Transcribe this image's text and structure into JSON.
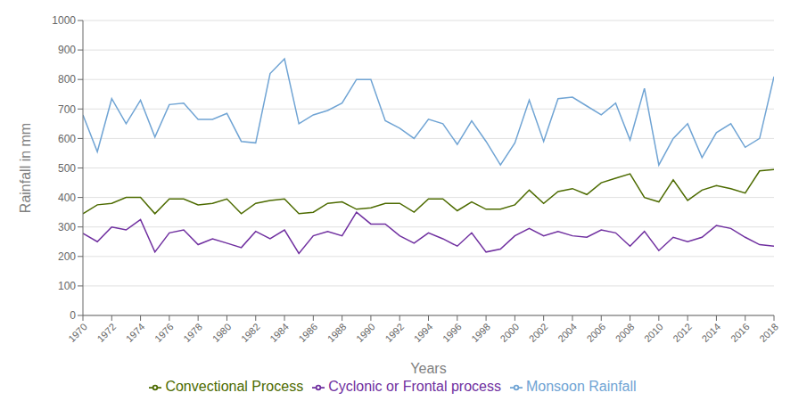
{
  "chart_data": {
    "type": "line",
    "xlabel": "Years",
    "ylabel": "Rainfall in mm",
    "x": [
      1970,
      1971,
      1972,
      1973,
      1974,
      1975,
      1976,
      1977,
      1978,
      1979,
      1980,
      1981,
      1982,
      1983,
      1984,
      1985,
      1986,
      1987,
      1988,
      1989,
      1990,
      1991,
      1992,
      1993,
      1994,
      1995,
      1996,
      1997,
      1998,
      1999,
      2000,
      2001,
      2002,
      2003,
      2004,
      2005,
      2006,
      2007,
      2008,
      2009,
      2010,
      2011,
      2012,
      2013,
      2014,
      2015,
      2016,
      2017,
      2018
    ],
    "series": [
      {
        "name": "Monsoon Rainfall",
        "color": "#70a4d4",
        "values": [
          680,
          555,
          735,
          650,
          730,
          605,
          715,
          720,
          665,
          665,
          685,
          590,
          585,
          820,
          870,
          650,
          680,
          695,
          720,
          800,
          800,
          660,
          635,
          600,
          665,
          650,
          580,
          660,
          590,
          510,
          585,
          730,
          590,
          735,
          740,
          710,
          680,
          720,
          595,
          770,
          510,
          600,
          650,
          535,
          620,
          650,
          570,
          600,
          810
        ]
      },
      {
        "name": "Cyclonic or Frontal process",
        "color": "#7030a0",
        "values": [
          278,
          250,
          300,
          290,
          325,
          215,
          280,
          290,
          240,
          260,
          245,
          230,
          285,
          260,
          290,
          210,
          270,
          285,
          270,
          350,
          310,
          310,
          270,
          245,
          280,
          260,
          235,
          280,
          215,
          225,
          270,
          295,
          270,
          285,
          270,
          265,
          290,
          280,
          235,
          285,
          220,
          265,
          250,
          265,
          305,
          295,
          265,
          240,
          235
        ]
      },
      {
        "name": "Convectional Process",
        "color": "#4d6b00",
        "values": [
          345,
          375,
          380,
          400,
          400,
          345,
          395,
          395,
          375,
          380,
          395,
          345,
          380,
          390,
          395,
          345,
          350,
          380,
          385,
          360,
          365,
          380,
          380,
          350,
          395,
          395,
          355,
          385,
          360,
          360,
          375,
          425,
          380,
          420,
          430,
          410,
          450,
          465,
          480,
          400,
          385,
          460,
          390,
          425,
          440,
          430,
          415,
          490,
          495
        ]
      }
    ],
    "xlim": [
      1970,
      2018
    ],
    "xticks": [
      1970,
      1972,
      1974,
      1976,
      1978,
      1980,
      1982,
      1984,
      1986,
      1988,
      1990,
      1992,
      1994,
      1996,
      1998,
      2000,
      2002,
      2004,
      2006,
      2008,
      2010,
      2012,
      2014,
      2016,
      2018
    ],
    "ylim": [
      0,
      1000
    ],
    "yticks": [
      0,
      100,
      200,
      300,
      400,
      500,
      600,
      700,
      800,
      900,
      1000
    ],
    "grid": true,
    "legend": "bottom"
  }
}
